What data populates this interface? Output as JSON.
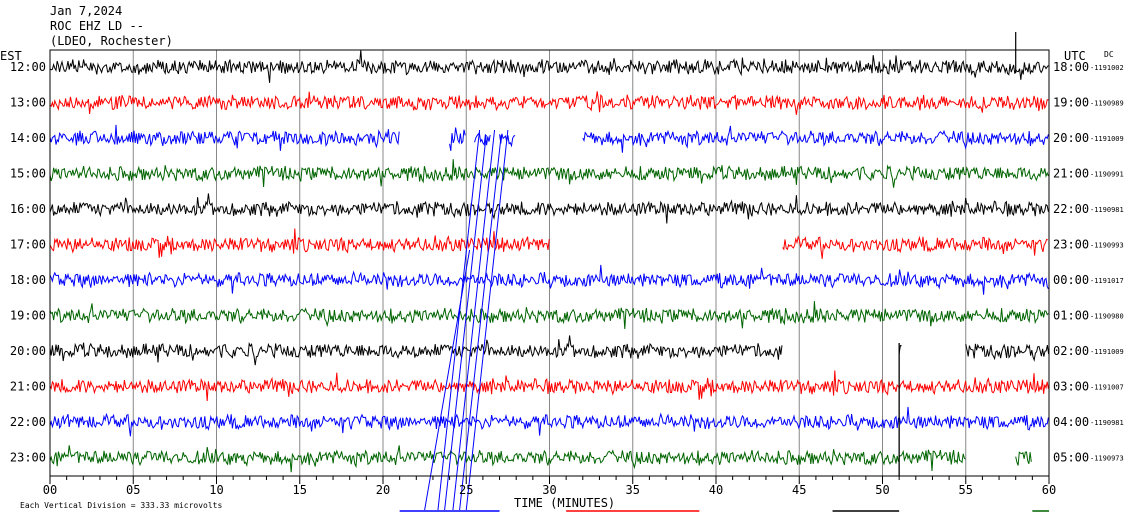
{
  "header": {
    "date": "Jan 7,2024",
    "station": "ROC EHZ LD --",
    "network": "(LDEO, Rochester)"
  },
  "chart_data": {
    "type": "line",
    "title": "Jan 7,2024",
    "left_label": "EST",
    "right_label": "UTC",
    "dc_label": "DC",
    "xlabel": "TIME (MINUTES)",
    "xlim": [
      0,
      60
    ],
    "x_ticks": [
      "00",
      "05",
      "10",
      "15",
      "20",
      "25",
      "30",
      "35",
      "40",
      "45",
      "50",
      "55",
      "60"
    ],
    "grid": true,
    "scale_note": "Each Vertical Division =  333.33 microvolts",
    "trace_colors": [
      "#000000",
      "#ff0000",
      "#0000ff",
      "#006400"
    ],
    "rows": [
      {
        "est": "12:00",
        "utc": "18:00",
        "dc": "-1191002",
        "segments": [
          [
            0,
            60
          ]
        ]
      },
      {
        "est": "13:00",
        "utc": "19:00",
        "dc": "-1190989",
        "segments": [
          [
            0,
            60
          ]
        ]
      },
      {
        "est": "14:00",
        "utc": "20:00",
        "dc": "-1191009",
        "segments": [
          [
            0,
            21
          ],
          [
            24,
            25
          ],
          [
            25.5,
            26.5
          ],
          [
            27,
            28
          ],
          [
            32,
            60
          ]
        ]
      },
      {
        "est": "15:00",
        "utc": "21:00",
        "dc": "-1190991",
        "segments": [
          [
            0,
            60
          ]
        ]
      },
      {
        "est": "16:00",
        "utc": "22:00",
        "dc": "-1190981",
        "segments": [
          [
            0,
            60
          ]
        ]
      },
      {
        "est": "17:00",
        "utc": "23:00",
        "dc": "-1190993",
        "segments": [
          [
            0,
            30
          ],
          [
            44,
            60
          ]
        ]
      },
      {
        "est": "18:00",
        "utc": "00:00",
        "dc": "-1191017",
        "segments": [
          [
            0,
            60
          ]
        ]
      },
      {
        "est": "19:00",
        "utc": "01:00",
        "dc": "-1190980",
        "segments": [
          [
            0,
            60
          ]
        ]
      },
      {
        "est": "20:00",
        "utc": "02:00",
        "dc": "-1191009",
        "segments": [
          [
            0,
            44
          ],
          [
            51,
            51.2
          ],
          [
            55,
            60
          ]
        ]
      },
      {
        "est": "21:00",
        "utc": "03:00",
        "dc": "-1191007",
        "segments": [
          [
            0,
            60
          ]
        ]
      },
      {
        "est": "22:00",
        "utc": "04:00",
        "dc": "-1190981",
        "segments": [
          [
            0,
            60
          ]
        ]
      },
      {
        "est": "23:00",
        "utc": "05:00",
        "dc": "-1190973",
        "segments": [
          [
            0,
            55
          ],
          [
            58,
            59
          ]
        ]
      }
    ]
  }
}
